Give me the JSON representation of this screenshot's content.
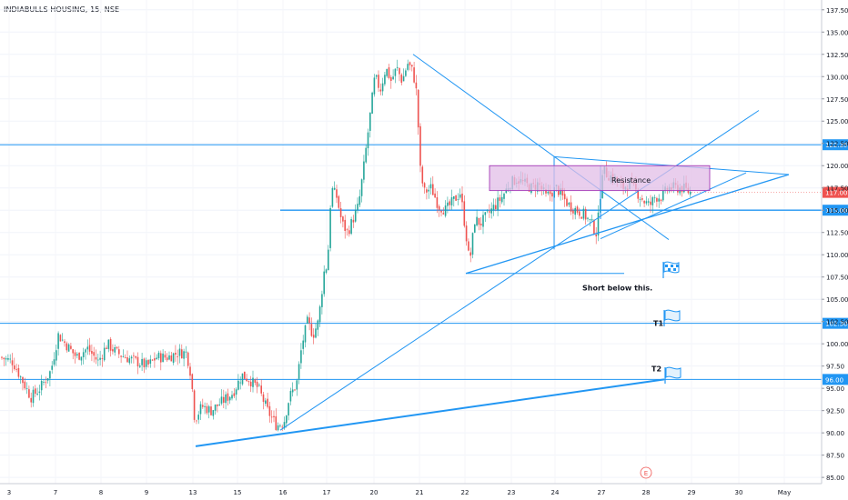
{
  "chart_data": {
    "type": "candlestick",
    "title": "INDIABULLS HOUSING, 15, NSE",
    "y_ticks": [
      85.0,
      87.5,
      90.0,
      92.5,
      95.0,
      97.5,
      100.0,
      102.5,
      105.0,
      107.5,
      110.0,
      112.5,
      115.0,
      117.5,
      120.0,
      122.5,
      125.0,
      127.5,
      130.0,
      132.5,
      135.0,
      137.5
    ],
    "ylim": [
      84.3,
      138.6
    ],
    "x_tick_labels": [
      "3",
      "7",
      "8",
      "9",
      "13",
      "15",
      "16",
      "17",
      "20",
      "21",
      "22",
      "23",
      "24",
      "27",
      "28",
      "29",
      "30",
      "May"
    ],
    "last_price": 117.0,
    "horizontal_levels": [
      {
        "value": 122.35,
        "label": "122.35"
      },
      {
        "value": 115.0,
        "label": "115.00"
      },
      {
        "value": 102.3,
        "label": "102.30"
      },
      {
        "value": 96.0,
        "label": "96.00"
      }
    ],
    "annotations": {
      "resistance": "Resistance",
      "short": "Short below this.",
      "t1": "T1",
      "t2": "T2",
      "earnings": "E"
    },
    "price_path": [
      [
        0,
        98.5
      ],
      [
        14,
        98
      ],
      [
        24,
        96
      ],
      [
        34,
        94
      ],
      [
        44,
        95
      ],
      [
        56,
        97
      ],
      [
        64,
        101
      ],
      [
        72,
        100
      ],
      [
        84,
        98.5
      ],
      [
        96,
        99.5
      ],
      [
        108,
        98
      ],
      [
        118,
        100
      ],
      [
        128,
        99
      ],
      [
        138,
        98.5
      ],
      [
        150,
        98
      ],
      [
        162,
        97.5
      ],
      [
        172,
        98.5
      ],
      [
        184,
        98.5
      ],
      [
        196,
        99
      ],
      [
        205,
        99
      ],
      [
        210,
        96.5
      ],
      [
        214,
        91.5
      ],
      [
        222,
        93
      ],
      [
        232,
        92.5
      ],
      [
        244,
        93.5
      ],
      [
        256,
        94.5
      ],
      [
        266,
        96.5
      ],
      [
        274,
        96
      ],
      [
        284,
        95
      ],
      [
        294,
        92.5
      ],
      [
        304,
        90.8
      ],
      [
        312,
        91.2
      ],
      [
        318,
        94
      ],
      [
        326,
        95.5
      ],
      [
        332,
        100
      ],
      [
        338,
        102.5
      ],
      [
        344,
        101
      ],
      [
        350,
        102.5
      ],
      [
        356,
        108
      ],
      [
        360,
        109
      ],
      [
        364,
        117.5
      ],
      [
        370,
        116.5
      ],
      [
        376,
        113.5
      ],
      [
        382,
        112.5
      ],
      [
        388,
        114
      ],
      [
        394,
        115.5
      ],
      [
        400,
        120
      ],
      [
        406,
        125
      ],
      [
        412,
        130
      ],
      [
        418,
        128.5
      ],
      [
        424,
        131
      ],
      [
        430,
        129.5
      ],
      [
        436,
        131
      ],
      [
        442,
        129.5
      ],
      [
        448,
        131.5
      ],
      [
        454,
        130.5
      ],
      [
        458,
        128
      ],
      [
        462,
        119.5
      ],
      [
        466,
        117
      ],
      [
        474,
        117.5
      ],
      [
        482,
        115.5
      ],
      [
        490,
        115
      ],
      [
        498,
        116
      ],
      [
        506,
        117
      ],
      [
        512,
        112.5
      ],
      [
        516,
        109
      ],
      [
        522,
        114
      ],
      [
        528,
        113.5
      ],
      [
        536,
        114.5
      ],
      [
        544,
        115.5
      ],
      [
        552,
        116.5
      ],
      [
        560,
        118
      ],
      [
        568,
        118.5
      ],
      [
        576,
        118
      ],
      [
        584,
        117.5
      ],
      [
        592,
        118
      ],
      [
        600,
        116.5
      ],
      [
        606,
        117
      ],
      [
        612,
        117.5
      ],
      [
        618,
        116.5
      ],
      [
        626,
        115.5
      ],
      [
        634,
        115
      ],
      [
        642,
        114.5
      ],
      [
        650,
        113.5
      ],
      [
        656,
        112.3
      ],
      [
        662,
        119.5
      ],
      [
        668,
        119
      ],
      [
        676,
        118.5
      ],
      [
        684,
        117.5
      ],
      [
        692,
        118
      ],
      [
        700,
        117
      ],
      [
        708,
        116
      ],
      [
        714,
        115.5
      ],
      [
        720,
        116.5
      ],
      [
        728,
        116.5
      ],
      [
        734,
        117.5
      ],
      [
        742,
        117.5
      ],
      [
        750,
        117.5
      ],
      [
        758,
        117
      ]
    ]
  },
  "colors": {
    "up": "#26a69a",
    "down": "#ef5350",
    "line": "#2196f3",
    "box_fill": "#e1bee7",
    "box_stroke": "#9c27b0",
    "price_tag": "#ef5350",
    "level_tag": "#2196f3"
  },
  "icons": [
    "flag-icon"
  ]
}
